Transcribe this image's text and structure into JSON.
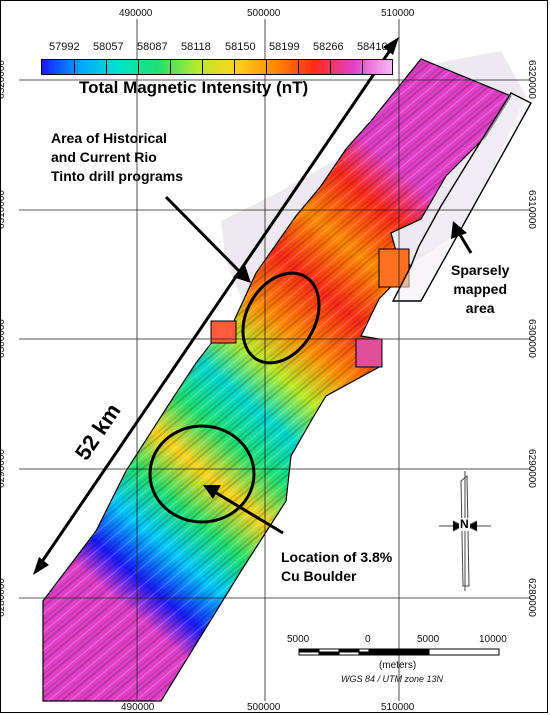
{
  "legend": {
    "title": "Total Magnetic Intensity (nT)",
    "values": [
      "57992",
      "58057",
      "58087",
      "58118",
      "58150",
      "58199",
      "58266",
      "58410"
    ],
    "colors": [
      "#1a1aff",
      "#00a8ff",
      "#00e5c8",
      "#22e070",
      "#b8ea2a",
      "#ffd21e",
      "#ff8a00",
      "#ff2a1a",
      "#e040c8",
      "#f7b8f5"
    ]
  },
  "grid": {
    "x_ticks": [
      "490000",
      "500000",
      "510000"
    ],
    "y_ticks": [
      "6320000",
      "6310000",
      "6300000",
      "6290000",
      "6280000"
    ]
  },
  "annotations": {
    "historical": [
      "Area of Historical",
      "and Current Rio",
      "Tinto drill programs"
    ],
    "sparse": [
      "Sparsely",
      "mapped",
      "area"
    ],
    "boulder": [
      "Location of 3.8%",
      "Cu Boulder"
    ],
    "distance": "52 km"
  },
  "scalebar": {
    "labels": [
      "5000",
      "0",
      "5000",
      "10000"
    ],
    "units": "(meters)",
    "projection": "WGS 84 / UTM zone 13N"
  },
  "north_arrow": {
    "icon": "north-arrow-icon",
    "letter": "N"
  }
}
